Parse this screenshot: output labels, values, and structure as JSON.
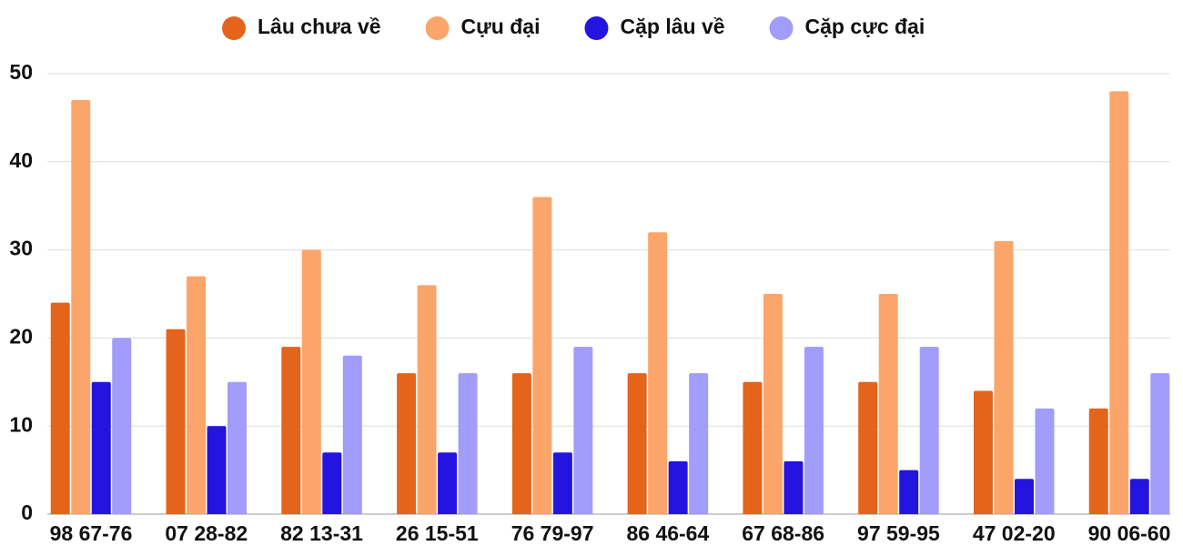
{
  "chart_data": {
    "type": "bar",
    "categories": [
      "98 67-76",
      "07 28-82",
      "82 13-31",
      "26 15-51",
      "76 79-97",
      "86 46-64",
      "67 68-86",
      "97 59-95",
      "47 02-20",
      "90 06-60"
    ],
    "series": [
      {
        "name": "Lâu chưa về",
        "color": "#e4641b",
        "values": [
          24,
          21,
          19,
          16,
          16,
          16,
          15,
          15,
          14,
          12
        ]
      },
      {
        "name": "Cựu đại",
        "color": "#fba56a",
        "values": [
          47,
          27,
          30,
          26,
          36,
          32,
          25,
          25,
          31,
          48
        ]
      },
      {
        "name": "Cặp lâu về",
        "color": "#2414e0",
        "values": [
          15,
          10,
          7,
          7,
          7,
          6,
          6,
          5,
          4,
          4
        ]
      },
      {
        "name": "Cặp cực đại",
        "color": "#a29cfb",
        "values": [
          20,
          15,
          18,
          16,
          19,
          16,
          19,
          19,
          12,
          16
        ]
      }
    ],
    "ylim": [
      0,
      50
    ],
    "yticks": [
      0,
      10,
      20,
      30,
      40,
      50
    ],
    "grid": true,
    "legend": "top"
  }
}
